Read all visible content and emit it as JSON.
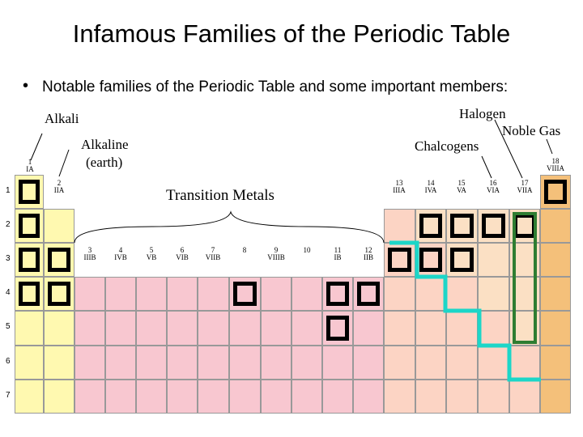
{
  "title": "Infamous Families of the Periodic Table",
  "bullet": "Notable families of the Periodic Table and some important members:",
  "families": {
    "alkali": "Alkali",
    "alkaline_line1": "Alkaline",
    "alkaline_line2": "(earth)",
    "transition": "Transition Metals",
    "halogen": "Halogen",
    "noble_gas": "Noble Gas",
    "chalcogens": "Chalcogens"
  },
  "group_labels": [
    {
      "num": "1",
      "roman": "IA"
    },
    {
      "num": "2",
      "roman": "IIA"
    },
    {
      "num": "3",
      "roman": "IIIB"
    },
    {
      "num": "4",
      "roman": "IVB"
    },
    {
      "num": "5",
      "roman": "VB"
    },
    {
      "num": "6",
      "roman": "VIB"
    },
    {
      "num": "7",
      "roman": "VIIB"
    },
    {
      "num": "8",
      "roman": ""
    },
    {
      "num": "9",
      "roman": "VIIIB"
    },
    {
      "num": "10",
      "roman": ""
    },
    {
      "num": "11",
      "roman": "IB"
    },
    {
      "num": "12",
      "roman": "IIB"
    },
    {
      "num": "13",
      "roman": "IIIA"
    },
    {
      "num": "14",
      "roman": "IVA"
    },
    {
      "num": "15",
      "roman": "VA"
    },
    {
      "num": "16",
      "roman": "VIA"
    },
    {
      "num": "17",
      "roman": "VIIA"
    },
    {
      "num": "18",
      "roman": "VIIIA"
    }
  ],
  "periods": [
    "1",
    "2",
    "3",
    "4",
    "5",
    "6",
    "7"
  ],
  "colors": {
    "alkali": "#fff9b0",
    "transition": "#f8c7d0",
    "post_transition": "#fcd4c4",
    "nonmetal": "#fbe0c4",
    "noble": "#f4c07a",
    "highlight_border": "#000000",
    "halogen_border": "#2e7d32",
    "staircase": "#1cd6c8"
  }
}
